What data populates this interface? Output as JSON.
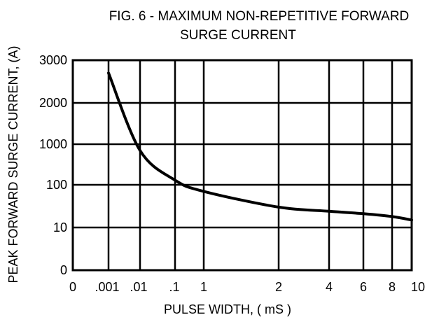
{
  "chart_data": {
    "type": "line",
    "title": "FIG. 6 - MAXIMUM NON-REPETITIVE FORWARD SURGE CURRENT",
    "title_lines": [
      "FIG. 6 - MAXIMUM NON-REPETITIVE FORWARD",
      "SURGE CURRENT"
    ],
    "xlabel": "PULSE WIDTH, ( mS )",
    "ylabel": "PEAK FORWARD SURGE CURRENT, (A)",
    "x_ticks": [
      "0",
      ".001",
      ".01",
      ".1",
      "1",
      "2",
      "4",
      "6",
      "8",
      "10"
    ],
    "y_ticks": [
      "0",
      "10",
      "100",
      "1000",
      "2000",
      "3000"
    ],
    "grid": true,
    "line_color": "#000000",
    "series": [
      {
        "points": [
          {
            "x": ".001",
            "y": 2700
          },
          {
            "x": ".01",
            "y": 700
          },
          {
            "x": ".1",
            "y": 130
          },
          {
            "x": "1",
            "y": 70
          },
          {
            "x": "2",
            "y": 30
          },
          {
            "x": "4",
            "y": 24
          },
          {
            "x": "6",
            "y": 21
          },
          {
            "x": "8",
            "y": 18
          },
          {
            "x": "10",
            "y": 15
          }
        ]
      }
    ]
  }
}
